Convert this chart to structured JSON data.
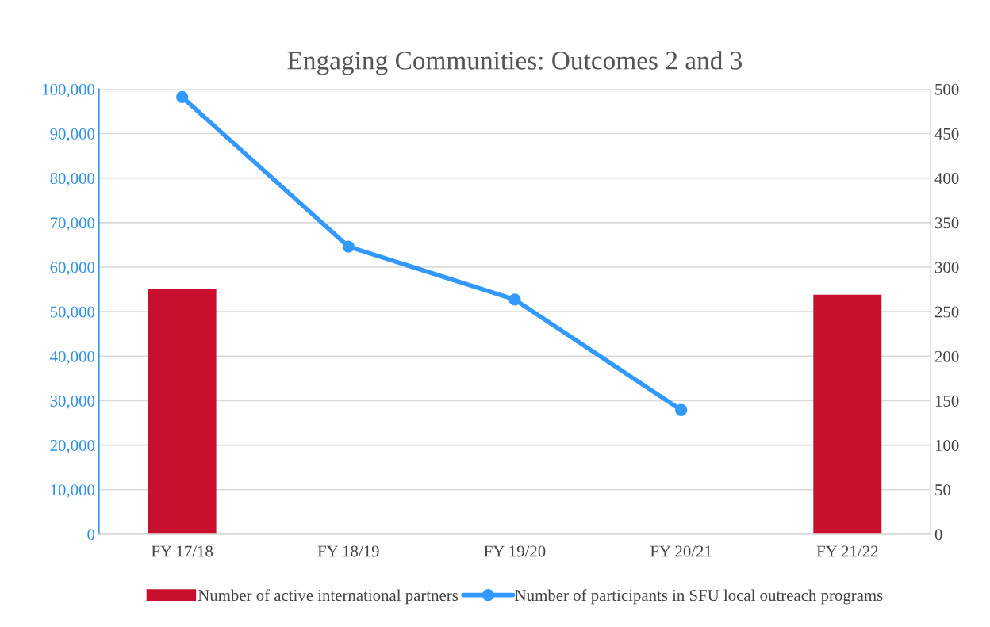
{
  "chart_data": {
    "type": "bar",
    "title": "Engaging Communities: Outcomes 2 and 3",
    "categories": [
      "FY 17/18",
      "FY 18/19",
      "FY 19/20",
      "FY 20/21",
      "FY 21/22"
    ],
    "series": [
      {
        "name": "Number of active international partners",
        "axis": "y2",
        "color": "#c8102e",
        "values": [
          276,
          null,
          null,
          null,
          269
        ]
      },
      {
        "name": "Number of participants in SFU local outreach programs",
        "type": "line",
        "color": "#3399ff",
        "marker": "circle",
        "values": [
          98200,
          64600,
          52700,
          27900,
          null
        ]
      }
    ],
    "ylim": [
      0,
      100000
    ],
    "yticks": [
      {
        "value": 0,
        "label": "0"
      },
      {
        "value": 10000,
        "label": "10,000"
      },
      {
        "value": 20000,
        "label": "20,000"
      },
      {
        "value": 30000,
        "label": "30,000"
      },
      {
        "value": 40000,
        "label": "40,000"
      },
      {
        "value": 50000,
        "label": "50,000"
      },
      {
        "value": 60000,
        "label": "60,000"
      },
      {
        "value": 70000,
        "label": "70,000"
      },
      {
        "value": 80000,
        "label": "80,000"
      },
      {
        "value": 90000,
        "label": "90,000"
      },
      {
        "value": 100000,
        "label": "100,000"
      }
    ],
    "y2lim": [
      0,
      500
    ],
    "y2ticks": [
      0,
      50,
      100,
      150,
      200,
      250,
      300,
      350,
      400,
      450,
      500
    ],
    "grid": "y",
    "legend": "bottom"
  }
}
